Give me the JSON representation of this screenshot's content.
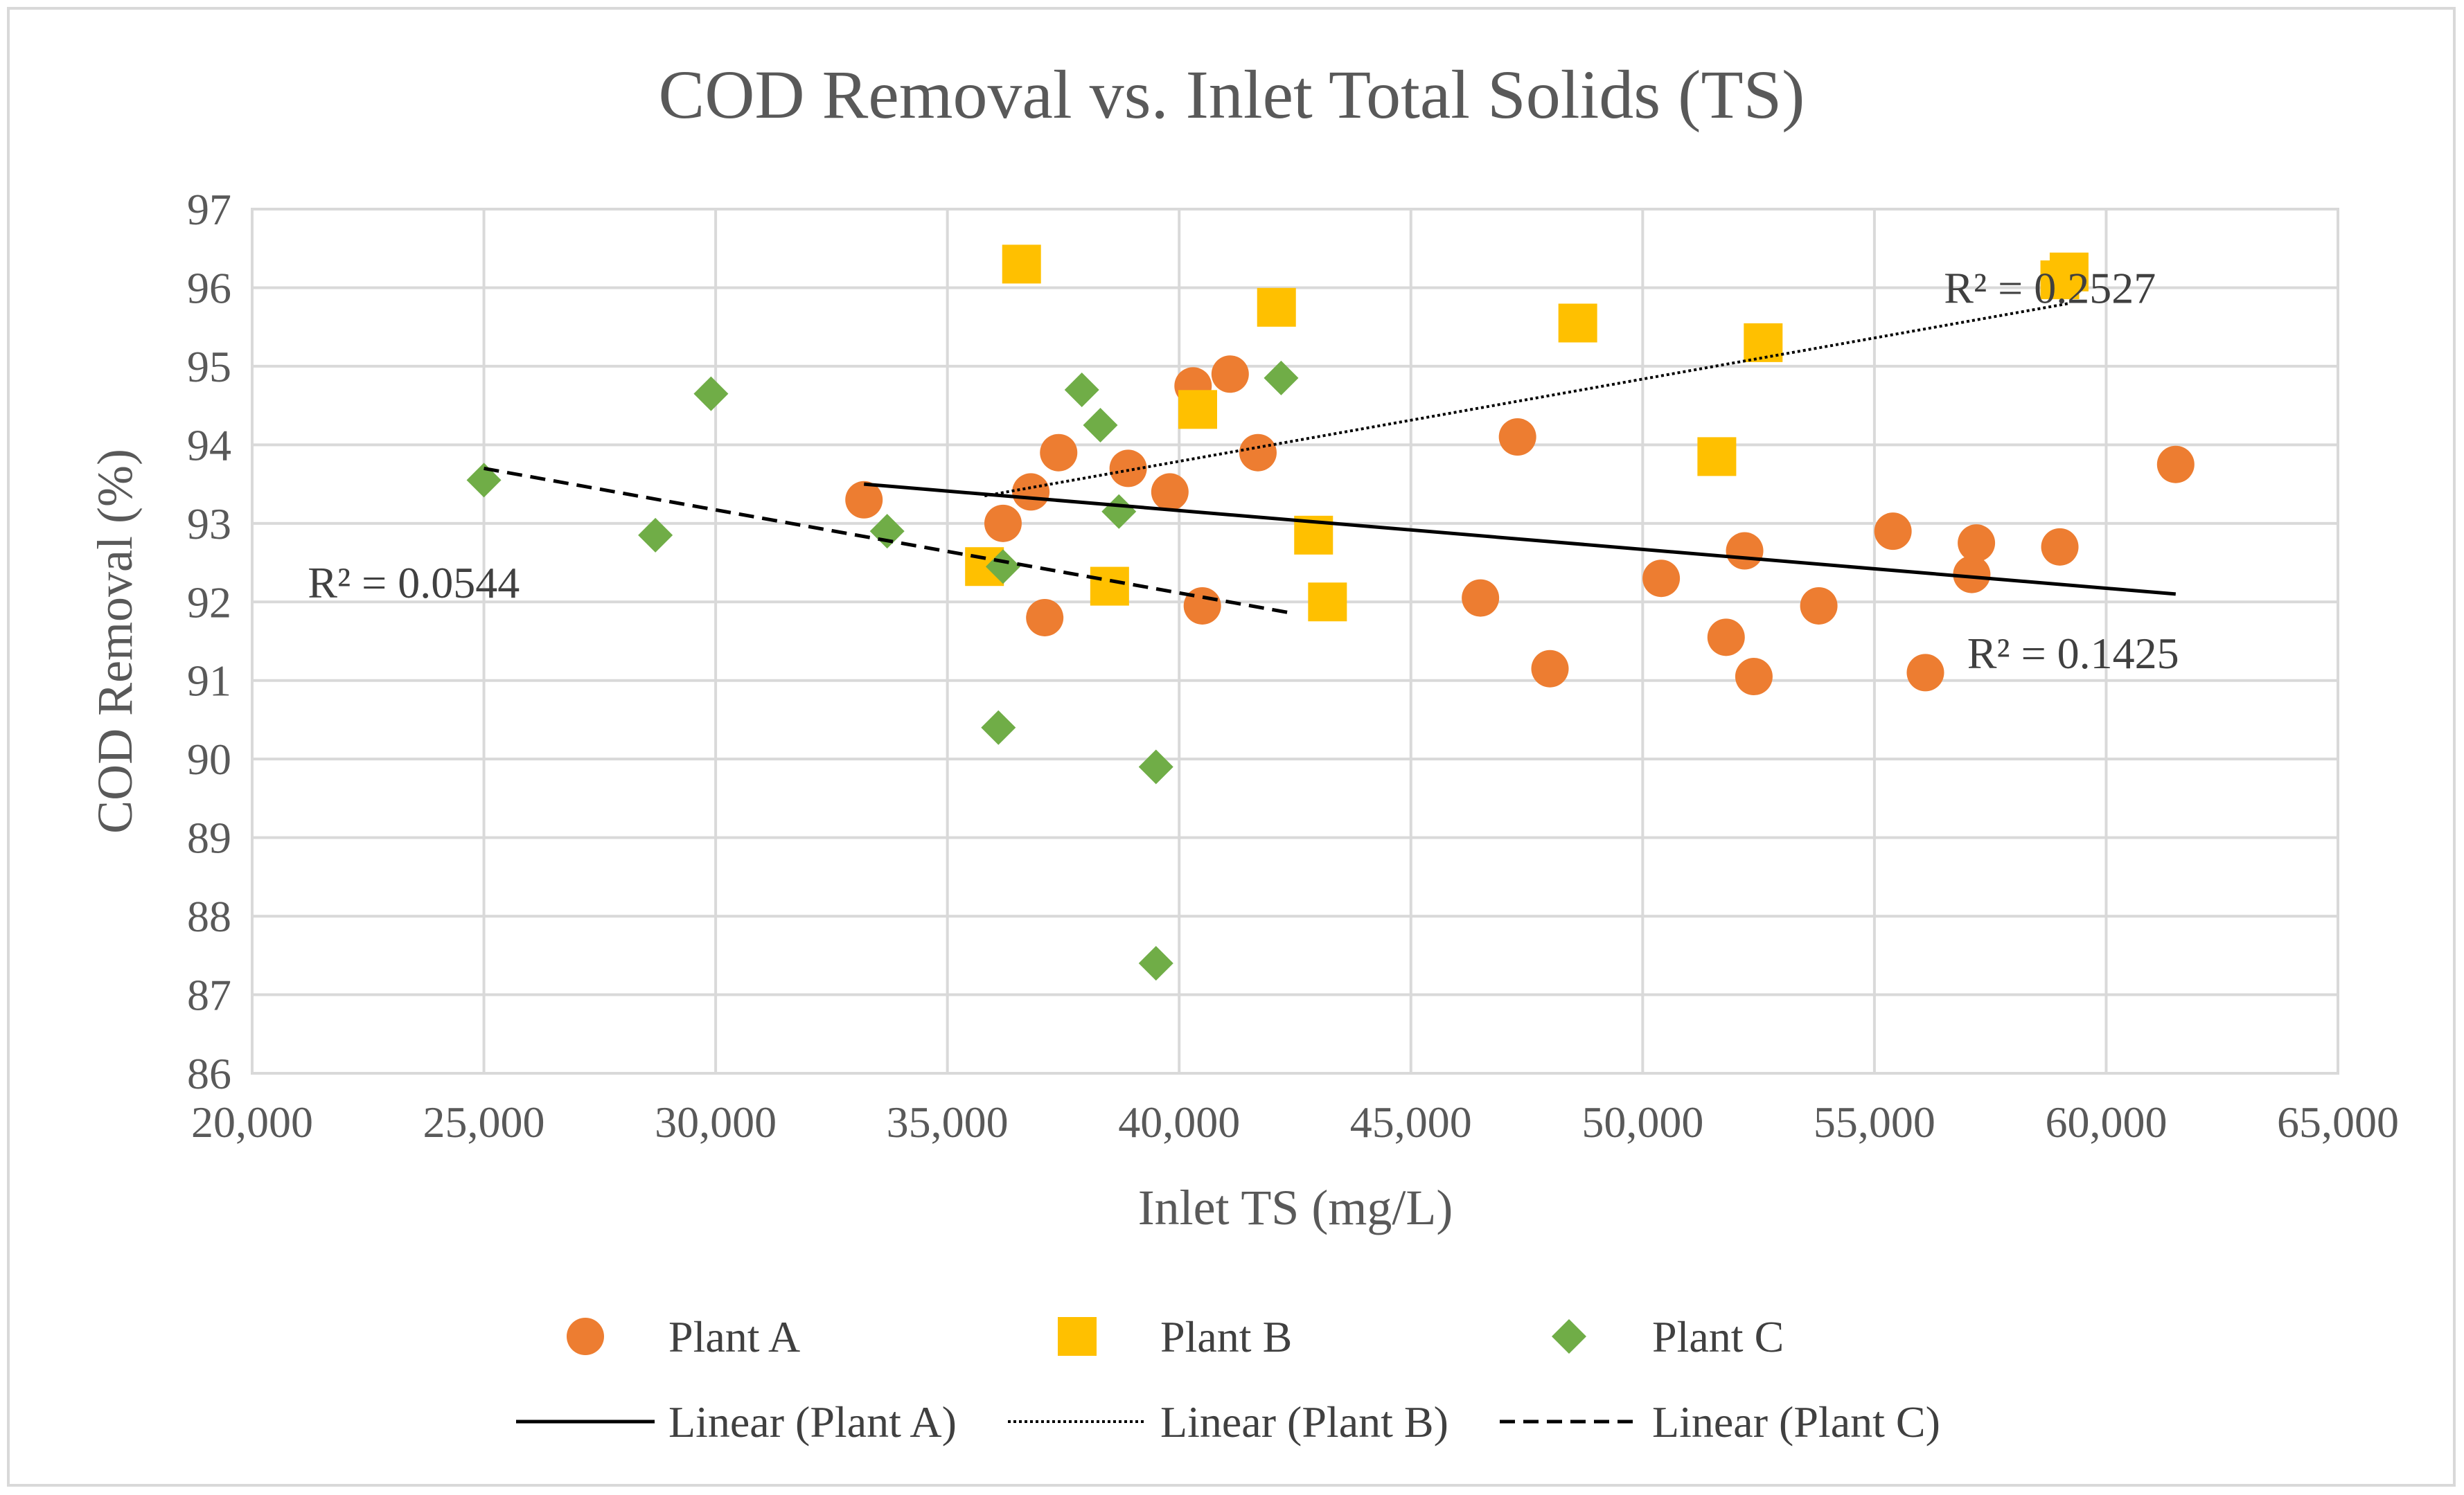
{
  "chart_data": {
    "type": "scatter",
    "title": "COD Removal vs. Inlet Total Solids (TS)",
    "xlabel": "Inlet TS (mg/L)",
    "ylabel": "COD Removal (%)",
    "xlim": [
      20000,
      65000
    ],
    "ylim": [
      86,
      97
    ],
    "x_ticks": [
      20000,
      25000,
      30000,
      35000,
      40000,
      45000,
      50000,
      55000,
      60000,
      65000
    ],
    "x_tick_labels": [
      "20,000",
      "25,000",
      "30,000",
      "35,000",
      "40,000",
      "45,000",
      "50,000",
      "55,000",
      "60,000",
      "65,000"
    ],
    "y_ticks": [
      86,
      87,
      88,
      89,
      90,
      91,
      92,
      93,
      94,
      95,
      96,
      97
    ],
    "y_tick_labels": [
      "86",
      "87",
      "88",
      "89",
      "90",
      "91",
      "92",
      "93",
      "94",
      "95",
      "96",
      "97"
    ],
    "grid": true,
    "legend_position": "bottom",
    "series": [
      {
        "name": "Plant A",
        "marker": "circle",
        "color": "#ED7D31",
        "points": [
          [
            33200,
            93.3
          ],
          [
            36200,
            93.0
          ],
          [
            36800,
            93.4
          ],
          [
            37100,
            91.8
          ],
          [
            37400,
            93.9
          ],
          [
            38900,
            93.7
          ],
          [
            39800,
            93.4
          ],
          [
            40300,
            94.75
          ],
          [
            40500,
            91.95
          ],
          [
            41100,
            94.9
          ],
          [
            41700,
            93.9
          ],
          [
            46500,
            92.05
          ],
          [
            47300,
            94.1
          ],
          [
            48000,
            91.15
          ],
          [
            50400,
            92.3
          ],
          [
            51800,
            91.55
          ],
          [
            52200,
            92.65
          ],
          [
            52400,
            91.05
          ],
          [
            53800,
            91.95
          ],
          [
            55400,
            92.9
          ],
          [
            56100,
            91.1
          ],
          [
            57100,
            92.35
          ],
          [
            57200,
            92.75
          ],
          [
            59000,
            92.7
          ],
          [
            61500,
            93.75
          ]
        ]
      },
      {
        "name": "Plant B",
        "marker": "square",
        "color": "#FFC000",
        "points": [
          [
            35800,
            92.45
          ],
          [
            36600,
            96.3
          ],
          [
            38500,
            92.2
          ],
          [
            40400,
            94.45
          ],
          [
            42100,
            95.75
          ],
          [
            42900,
            92.85
          ],
          [
            43200,
            92.0
          ],
          [
            48600,
            95.55
          ],
          [
            51600,
            93.85
          ],
          [
            52600,
            95.3
          ],
          [
            59000,
            96.1
          ],
          [
            59200,
            96.2
          ]
        ]
      },
      {
        "name": "Plant C",
        "marker": "diamond",
        "color": "#70AD47",
        "points": [
          [
            25000,
            93.55
          ],
          [
            28700,
            92.85
          ],
          [
            29900,
            94.65
          ],
          [
            33700,
            92.9
          ],
          [
            36100,
            90.4
          ],
          [
            36200,
            92.45
          ],
          [
            37900,
            94.7
          ],
          [
            38300,
            94.25
          ],
          [
            38700,
            93.15
          ],
          [
            39500,
            89.9
          ],
          [
            39500,
            87.4
          ],
          [
            42200,
            94.85
          ]
        ]
      }
    ],
    "trendlines": [
      {
        "name": "Linear (Plant A)",
        "style": "solid",
        "x": [
          33200,
          61500
        ],
        "y": [
          93.5,
          92.1
        ],
        "r2_label": "R² = 0.1425",
        "r2_anchor": [
          57000,
          91.35
        ]
      },
      {
        "name": "Linear (Plant B)",
        "style": "dotted",
        "x": [
          35800,
          59200
        ],
        "y": [
          93.35,
          95.8
        ],
        "r2_label": "R² = 0.2527",
        "r2_anchor": [
          56500,
          96.0
        ]
      },
      {
        "name": "Linear (Plant C)",
        "style": "dashed",
        "x": [
          25000,
          42500
        ],
        "y": [
          93.7,
          91.85
        ],
        "r2_label": "R² = 0.0544",
        "r2_anchor": [
          21200,
          92.25
        ]
      }
    ]
  }
}
